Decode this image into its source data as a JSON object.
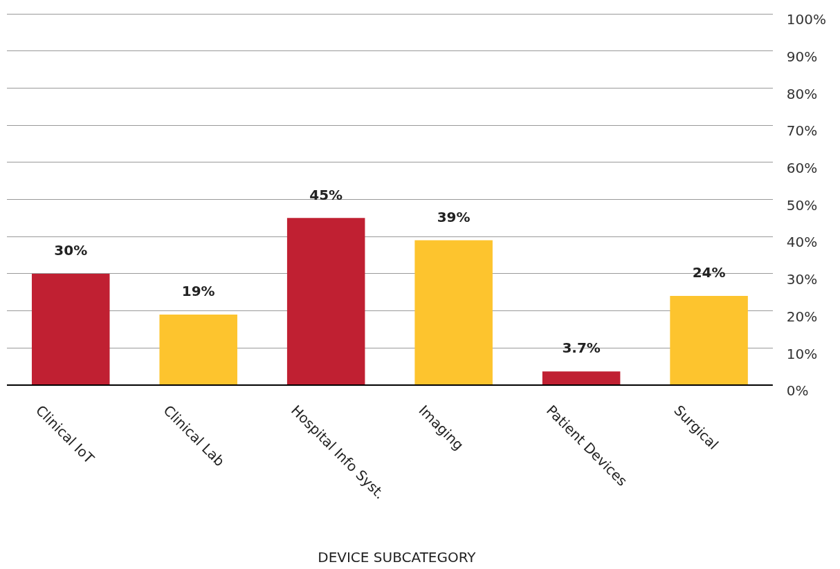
{
  "chart_data": {
    "type": "bar",
    "xlabel": "DEVICE SUBCATEGORY",
    "categories": [
      "Clinical IoT",
      "Clinical Lab",
      "Hospital Info Syst.",
      "Imaging",
      "Patient Devices",
      "Surgical"
    ],
    "values": [
      30,
      19,
      45,
      39,
      3.7,
      24
    ],
    "value_labels": [
      "30%",
      "19%",
      "45%",
      "39%",
      "3.7%",
      "24%"
    ],
    "colors": [
      "#c02032",
      "#fdc42e",
      "#c02032",
      "#fdc42e",
      "#c02032",
      "#fdc42e"
    ],
    "ylim": [
      0,
      100
    ],
    "yticks": [
      {
        "value": 0,
        "label": "0%"
      },
      {
        "value": 10,
        "label": "10%"
      },
      {
        "value": 20,
        "label": "20%"
      },
      {
        "value": 30,
        "label": "30%"
      },
      {
        "value": 40,
        "label": "40%"
      },
      {
        "value": 50,
        "label": "50%"
      },
      {
        "value": 60,
        "label": "60%"
      },
      {
        "value": 70,
        "label": "70%"
      },
      {
        "value": 80,
        "label": "80%"
      },
      {
        "value": 90,
        "label": "90%"
      },
      {
        "value": 100,
        "label": "100%"
      }
    ],
    "grid": "y",
    "legend": false
  }
}
